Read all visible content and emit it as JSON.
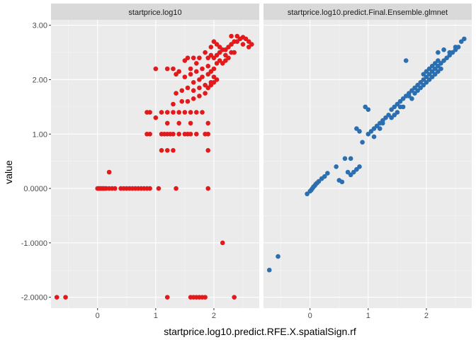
{
  "chart_data": {
    "type": "scatter",
    "facets": [
      "startprice.log10",
      "startprice.log10.predict.Final.Ensemble.glmnet"
    ],
    "xlabel": "startprice.log10.predict.RFE.X.spatialSign.rf",
    "ylabel": "value",
    "xlim": [
      -0.8,
      2.78
    ],
    "ylim": [
      -2.2,
      3.1
    ],
    "x_ticks": [
      0,
      1,
      2
    ],
    "x_tick_labels": [
      "0",
      "1",
      "2"
    ],
    "y_ticks": [
      3,
      2,
      1,
      0,
      -1,
      -2
    ],
    "y_tick_labels": [
      "3.00",
      "2.00",
      "1.00",
      "0.0000",
      "-1.0000",
      "-2.0000"
    ],
    "grid": true,
    "legend": "none",
    "series": [
      {
        "facet": 0,
        "color": "#E31A1C",
        "points": [
          [
            -0.7,
            -2.0
          ],
          [
            -0.55,
            -2.0
          ],
          [
            1.2,
            -2.0
          ],
          [
            1.6,
            -2.0
          ],
          [
            1.65,
            -2.0
          ],
          [
            1.7,
            -2.0
          ],
          [
            1.75,
            -2.0
          ],
          [
            1.8,
            -2.0
          ],
          [
            1.85,
            -2.0
          ],
          [
            2.35,
            -2.0
          ],
          [
            2.15,
            -1.0
          ],
          [
            0.0,
            0.0
          ],
          [
            0.02,
            0.0
          ],
          [
            0.04,
            0.0
          ],
          [
            0.06,
            0.0
          ],
          [
            0.08,
            0.0
          ],
          [
            0.1,
            0.0
          ],
          [
            0.12,
            0.0
          ],
          [
            0.15,
            0.0
          ],
          [
            0.2,
            0.0
          ],
          [
            0.25,
            0.0
          ],
          [
            0.3,
            0.0
          ],
          [
            0.4,
            0.0
          ],
          [
            0.45,
            0.0
          ],
          [
            0.5,
            0.0
          ],
          [
            0.55,
            0.0
          ],
          [
            0.6,
            0.0
          ],
          [
            0.65,
            0.0
          ],
          [
            0.7,
            0.0
          ],
          [
            0.75,
            0.0
          ],
          [
            0.8,
            0.0
          ],
          [
            0.85,
            0.0
          ],
          [
            0.9,
            0.0
          ],
          [
            1.05,
            0.0
          ],
          [
            1.35,
            0.0
          ],
          [
            1.9,
            0.0
          ],
          [
            0.2,
            0.3
          ],
          [
            1.1,
            1.0
          ],
          [
            1.15,
            1.0
          ],
          [
            1.2,
            1.0
          ],
          [
            1.25,
            1.0
          ],
          [
            1.3,
            1.0
          ],
          [
            1.4,
            1.0
          ],
          [
            1.5,
            1.0
          ],
          [
            1.55,
            1.0
          ],
          [
            1.6,
            1.0
          ],
          [
            1.7,
            1.0
          ],
          [
            1.85,
            1.0
          ],
          [
            1.9,
            1.0
          ],
          [
            1.1,
            0.7
          ],
          [
            1.2,
            0.7
          ],
          [
            1.3,
            0.7
          ],
          [
            1.9,
            0.7
          ],
          [
            0.85,
            1.0
          ],
          [
            0.9,
            1.0
          ],
          [
            0.85,
            1.4
          ],
          [
            0.9,
            1.4
          ],
          [
            1.2,
            1.2
          ],
          [
            1.4,
            1.2
          ],
          [
            1.6,
            1.2
          ],
          [
            1.9,
            1.2
          ],
          [
            1.0,
            1.3
          ],
          [
            1.1,
            1.4
          ],
          [
            1.2,
            1.4
          ],
          [
            1.3,
            1.4
          ],
          [
            1.4,
            1.4
          ],
          [
            1.5,
            1.4
          ],
          [
            1.6,
            1.4
          ],
          [
            1.7,
            1.4
          ],
          [
            1.8,
            1.4
          ],
          [
            1.3,
            1.55
          ],
          [
            1.45,
            1.6
          ],
          [
            1.55,
            1.6
          ],
          [
            1.65,
            1.65
          ],
          [
            1.75,
            1.7
          ],
          [
            1.85,
            1.75
          ],
          [
            1.35,
            1.75
          ],
          [
            1.45,
            1.8
          ],
          [
            1.55,
            1.85
          ],
          [
            1.65,
            1.8
          ],
          [
            1.75,
            1.85
          ],
          [
            1.85,
            1.9
          ],
          [
            1.95,
            1.95
          ],
          [
            1.65,
            1.95
          ],
          [
            1.75,
            2.0
          ],
          [
            1.8,
            2.05
          ],
          [
            1.9,
            2.1
          ],
          [
            1.95,
            2.15
          ],
          [
            2.0,
            2.05
          ],
          [
            1.5,
            2.05
          ],
          [
            1.6,
            2.1
          ],
          [
            1.7,
            2.15
          ],
          [
            1.8,
            2.2
          ],
          [
            1.9,
            2.25
          ],
          [
            2.0,
            2.2
          ],
          [
            2.05,
            2.3
          ],
          [
            2.1,
            2.35
          ],
          [
            1.9,
            1.85
          ],
          [
            1.95,
            1.9
          ],
          [
            2.0,
            1.95
          ],
          [
            2.05,
            2.0
          ],
          [
            1.0,
            2.2
          ],
          [
            1.2,
            2.2
          ],
          [
            1.3,
            2.2
          ],
          [
            1.35,
            2.1
          ],
          [
            1.4,
            2.15
          ],
          [
            1.5,
            2.35
          ],
          [
            1.55,
            2.4
          ],
          [
            1.85,
            2.5
          ],
          [
            1.9,
            2.4
          ],
          [
            1.95,
            2.45
          ],
          [
            2.0,
            2.4
          ],
          [
            2.05,
            2.45
          ],
          [
            2.1,
            2.5
          ],
          [
            2.15,
            2.55
          ],
          [
            2.2,
            2.55
          ],
          [
            2.25,
            2.6
          ],
          [
            2.3,
            2.65
          ],
          [
            2.35,
            2.7
          ],
          [
            2.4,
            2.7
          ],
          [
            2.45,
            2.75
          ],
          [
            2.5,
            2.65
          ],
          [
            2.55,
            2.75
          ],
          [
            2.6,
            2.7
          ],
          [
            2.6,
            2.6
          ],
          [
            2.65,
            2.65
          ],
          [
            1.95,
            2.6
          ],
          [
            2.0,
            2.7
          ],
          [
            2.1,
            2.6
          ],
          [
            2.2,
            2.45
          ],
          [
            2.25,
            2.4
          ],
          [
            2.3,
            2.5
          ],
          [
            2.35,
            2.5
          ],
          [
            2.3,
            2.8
          ],
          [
            2.4,
            2.8
          ],
          [
            2.5,
            2.78
          ],
          [
            2.05,
            2.65
          ],
          [
            1.75,
            2.4
          ],
          [
            1.7,
            2.3
          ],
          [
            1.65,
            2.4
          ],
          [
            1.6,
            2.2
          ],
          [
            2.15,
            2.3
          ],
          [
            2.2,
            2.35
          ]
        ]
      },
      {
        "facet": 1,
        "color": "#2C6FB0",
        "points": [
          [
            -0.7,
            -1.5
          ],
          [
            -0.55,
            -1.25
          ],
          [
            -0.05,
            -0.1
          ],
          [
            0.0,
            -0.05
          ],
          [
            0.02,
            -0.03
          ],
          [
            0.04,
            0.0
          ],
          [
            0.06,
            0.03
          ],
          [
            0.08,
            0.05
          ],
          [
            0.1,
            0.08
          ],
          [
            0.12,
            0.1
          ],
          [
            0.15,
            0.13
          ],
          [
            0.2,
            0.18
          ],
          [
            0.25,
            0.22
          ],
          [
            0.3,
            0.28
          ],
          [
            0.45,
            0.4
          ],
          [
            0.6,
            0.55
          ],
          [
            0.65,
            0.3
          ],
          [
            0.7,
            0.25
          ],
          [
            0.75,
            0.3
          ],
          [
            0.8,
            0.35
          ],
          [
            0.85,
            0.4
          ],
          [
            0.5,
            0.15
          ],
          [
            0.55,
            0.12
          ],
          [
            0.7,
            0.55
          ],
          [
            0.9,
            0.85
          ],
          [
            1.0,
            1.0
          ],
          [
            0.85,
            1.05
          ],
          [
            0.8,
            1.1
          ],
          [
            1.05,
            1.05
          ],
          [
            1.1,
            1.1
          ],
          [
            1.15,
            1.15
          ],
          [
            1.2,
            1.2
          ],
          [
            1.25,
            1.25
          ],
          [
            1.0,
            1.45
          ],
          [
            0.95,
            1.5
          ],
          [
            1.3,
            1.3
          ],
          [
            1.35,
            1.35
          ],
          [
            1.4,
            1.45
          ],
          [
            1.45,
            1.5
          ],
          [
            1.5,
            1.55
          ],
          [
            1.55,
            1.6
          ],
          [
            1.6,
            1.65
          ],
          [
            1.65,
            1.7
          ],
          [
            1.7,
            1.75
          ],
          [
            1.75,
            1.8
          ],
          [
            1.8,
            1.85
          ],
          [
            1.85,
            1.9
          ],
          [
            1.9,
            1.95
          ],
          [
            1.95,
            2.0
          ],
          [
            2.0,
            2.05
          ],
          [
            2.05,
            2.1
          ],
          [
            2.1,
            2.15
          ],
          [
            2.15,
            2.2
          ],
          [
            2.2,
            2.25
          ],
          [
            2.25,
            2.3
          ],
          [
            2.3,
            2.35
          ],
          [
            2.35,
            2.4
          ],
          [
            2.4,
            2.45
          ],
          [
            2.45,
            2.5
          ],
          [
            2.5,
            2.55
          ],
          [
            2.55,
            2.6
          ],
          [
            2.6,
            2.7
          ],
          [
            2.65,
            2.75
          ],
          [
            1.6,
            1.5
          ],
          [
            1.7,
            1.7
          ],
          [
            1.75,
            1.65
          ],
          [
            1.8,
            1.75
          ],
          [
            1.85,
            1.8
          ],
          [
            1.9,
            1.85
          ],
          [
            1.95,
            1.9
          ],
          [
            2.0,
            1.95
          ],
          [
            2.05,
            2.0
          ],
          [
            2.1,
            2.05
          ],
          [
            2.15,
            2.1
          ],
          [
            2.2,
            2.15
          ],
          [
            2.25,
            2.2
          ],
          [
            1.65,
            2.35
          ],
          [
            2.2,
            2.5
          ],
          [
            2.3,
            2.55
          ],
          [
            2.4,
            2.5
          ],
          [
            2.5,
            2.6
          ],
          [
            1.95,
            2.1
          ],
          [
            2.0,
            2.15
          ],
          [
            2.05,
            2.2
          ],
          [
            2.1,
            2.25
          ],
          [
            2.15,
            2.3
          ],
          [
            2.2,
            2.35
          ],
          [
            1.4,
            1.3
          ],
          [
            1.45,
            1.35
          ],
          [
            1.5,
            1.4
          ],
          [
            1.55,
            1.5
          ],
          [
            1.2,
            1.1
          ],
          [
            1.25,
            1.2
          ],
          [
            1.1,
            0.95
          ]
        ]
      }
    ]
  }
}
